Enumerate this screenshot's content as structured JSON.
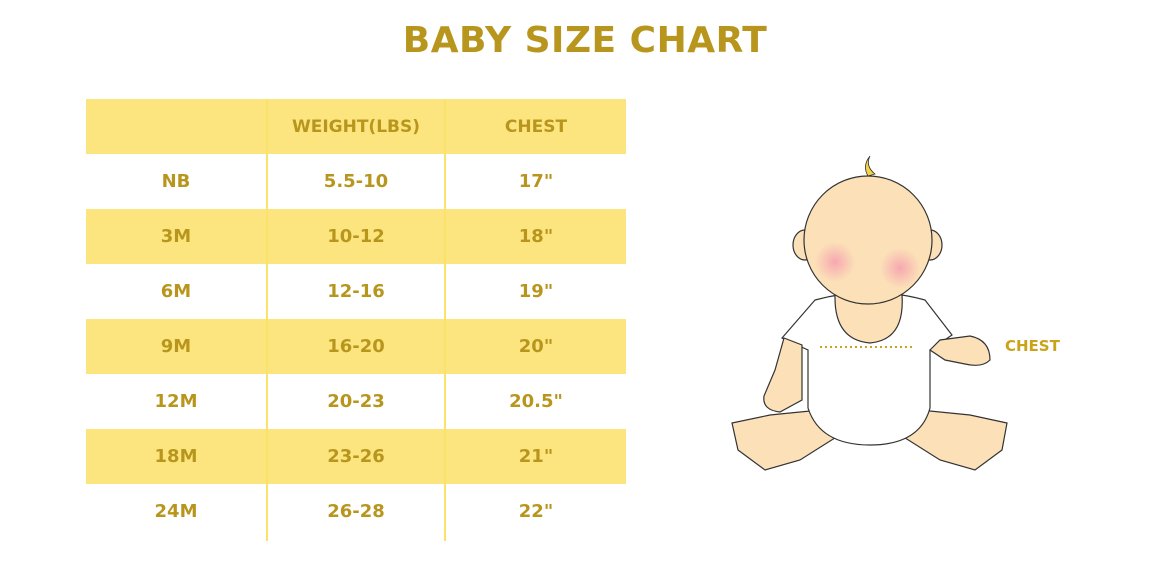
{
  "title": "BABY SIZE CHART",
  "colors": {
    "accent": "#b8961e",
    "row_fill": "#fce57e"
  },
  "chart_data": {
    "type": "table",
    "title": "BABY SIZE CHART",
    "columns": [
      "",
      "WEIGHT(LBS)",
      "CHEST"
    ],
    "rows": [
      [
        "NB",
        "5.5-10",
        "17\""
      ],
      [
        "3M",
        "10-12",
        "18\""
      ],
      [
        "6M",
        "12-16",
        "19\""
      ],
      [
        "9M",
        "16-20",
        "20\""
      ],
      [
        "12M",
        "20-23",
        "20.5\""
      ],
      [
        "18M",
        "23-26",
        "21\""
      ],
      [
        "24M",
        "26-28",
        "22\""
      ]
    ]
  },
  "illustration": {
    "chest_label": "CHEST"
  }
}
